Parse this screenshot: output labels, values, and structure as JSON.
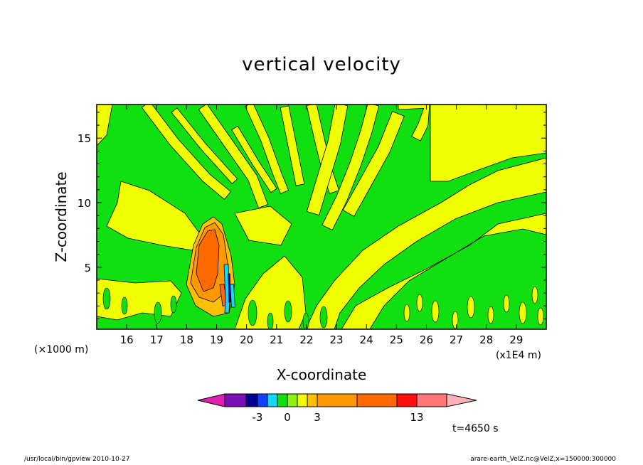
{
  "chart_data": {
    "type": "heatmap",
    "title": "vertical velocity",
    "xlabel": "X-coordinate",
    "ylabel": "Z-coordinate",
    "x_unit_note": "(×1000 m)",
    "x_scale_note": "(x1E4 m)",
    "x_ticks": [
      16,
      17,
      18,
      19,
      20,
      21,
      22,
      23,
      24,
      25,
      26,
      27,
      28,
      29
    ],
    "y_ticks": [
      5,
      10,
      15
    ],
    "xlim": [
      150000,
      300000
    ],
    "ylim": [
      0.2,
      17.6
    ],
    "colorbar": {
      "tick_labels": [
        "-3",
        "0",
        "3",
        "13"
      ],
      "bins": [
        {
          "lo": null,
          "hi": -8,
          "color": "#e020b0"
        },
        {
          "lo": -8,
          "hi": -4,
          "color": "#7a10b8"
        },
        {
          "lo": -4,
          "hi": -3,
          "color": "#000090"
        },
        {
          "lo": -3,
          "hi": -2,
          "color": "#1040ff"
        },
        {
          "lo": -2,
          "hi": -1,
          "color": "#10d8ff"
        },
        {
          "lo": -1,
          "hi": 0,
          "color": "#10e010"
        },
        {
          "lo": 0,
          "hi": 1,
          "color": "#90f010"
        },
        {
          "lo": 1,
          "hi": 2,
          "color": "#f0ff00"
        },
        {
          "lo": 2,
          "hi": 3,
          "color": "#ffc000"
        },
        {
          "lo": 3,
          "hi": 4,
          "color": "#ff9800"
        },
        {
          "lo": 4,
          "hi": 8,
          "color": "#ff6a00"
        },
        {
          "lo": 8,
          "hi": 12,
          "color": "#ff1010"
        },
        {
          "lo": 12,
          "hi": 13,
          "color": "#ff7878"
        },
        {
          "lo": 13,
          "hi": null,
          "color": "#ffb0b8"
        }
      ]
    },
    "field_colors": {
      "weak_up": "#f0ff00",
      "weak_down": "#10e010",
      "plume_strong": "#ff6a00",
      "plume_mid": "#ff9800",
      "plume_weak": "#ffc000",
      "downdraft": "#10d8ff",
      "downdraft_core": "#000090"
    }
  },
  "annotations": {
    "timestamp": "t=4650 s",
    "footer_left": "/usr/local/bin/gpview  2010-10-27",
    "footer_right": "arare-earth_VelZ.nc@VelZ,x=150000:300000"
  }
}
